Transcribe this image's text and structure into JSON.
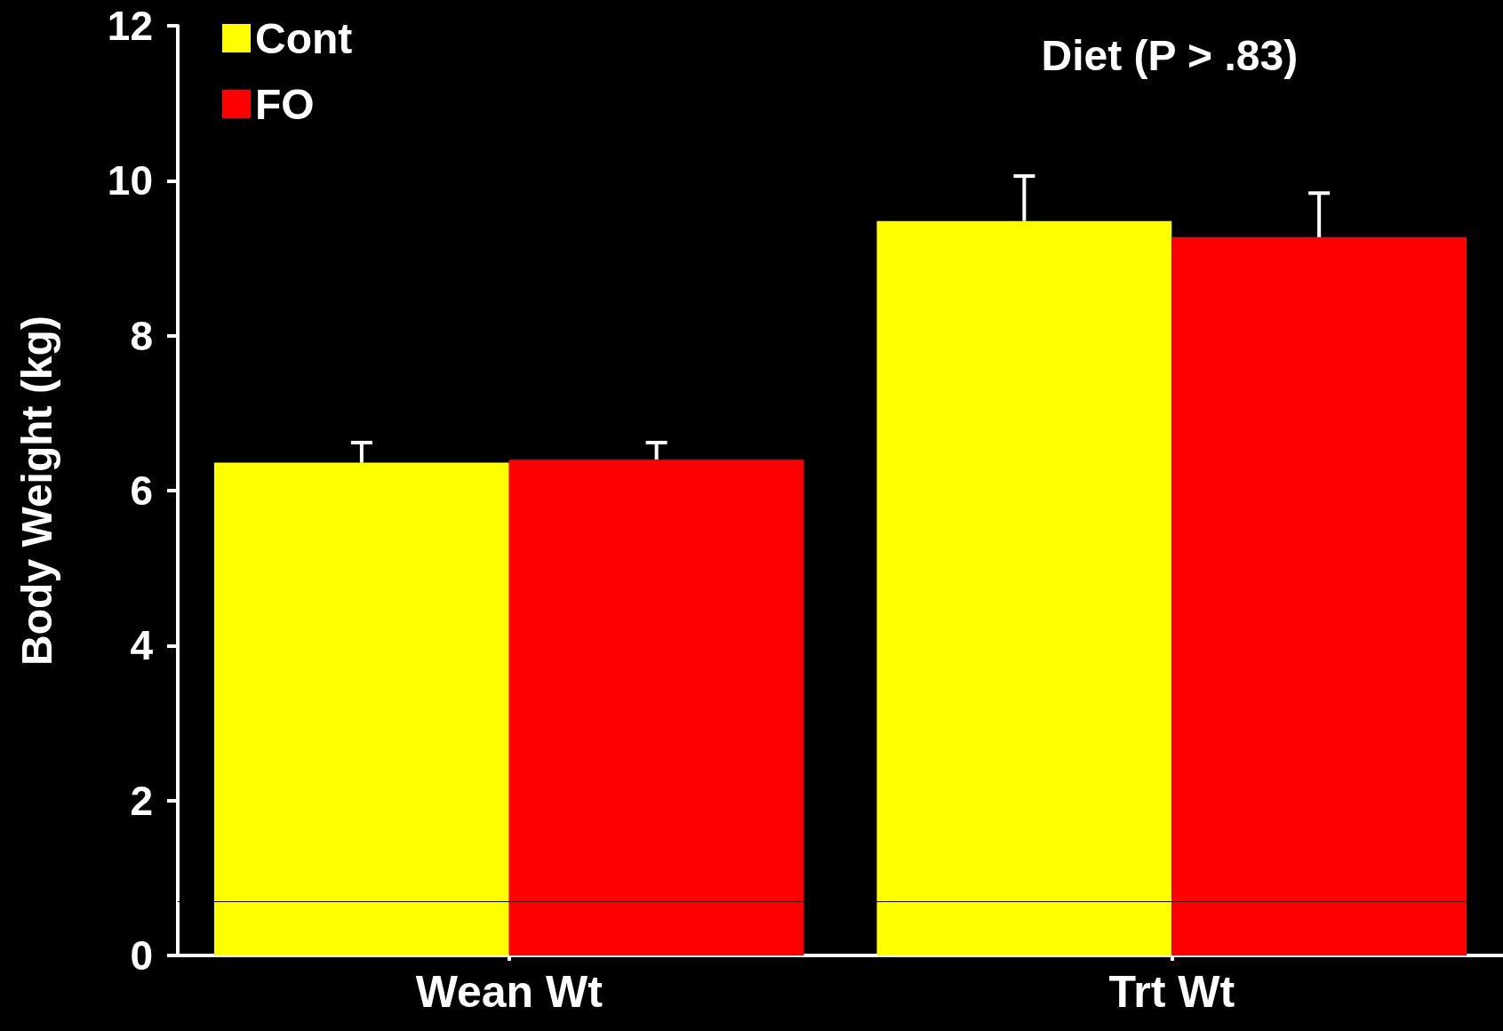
{
  "chart_data": {
    "type": "bar",
    "ylabel": "Body Weight (kg)",
    "categories": [
      "Wean Wt",
      "Trt Wt"
    ],
    "series": [
      {
        "name": "Cont",
        "color": "#ffff00",
        "values": [
          6.36,
          9.48
        ],
        "errors": [
          [
            6.36,
            6.62
          ],
          [
            9.48,
            10.06
          ]
        ]
      },
      {
        "name": "FO",
        "color": "#ff0000",
        "values": [
          6.4,
          9.27
        ],
        "errors": [
          [
            6.4,
            6.62
          ],
          [
            9.27,
            9.84
          ]
        ]
      }
    ],
    "ylim": [
      0,
      12
    ],
    "yticks": [
      0,
      2,
      4,
      6,
      8,
      10,
      12
    ],
    "grid": false,
    "legend": "top left",
    "annotations": [
      "Diet (P > .83)"
    ],
    "ref_lines": [
      {
        "axis": "y",
        "value": 0.7,
        "color": "#000000"
      }
    ]
  }
}
